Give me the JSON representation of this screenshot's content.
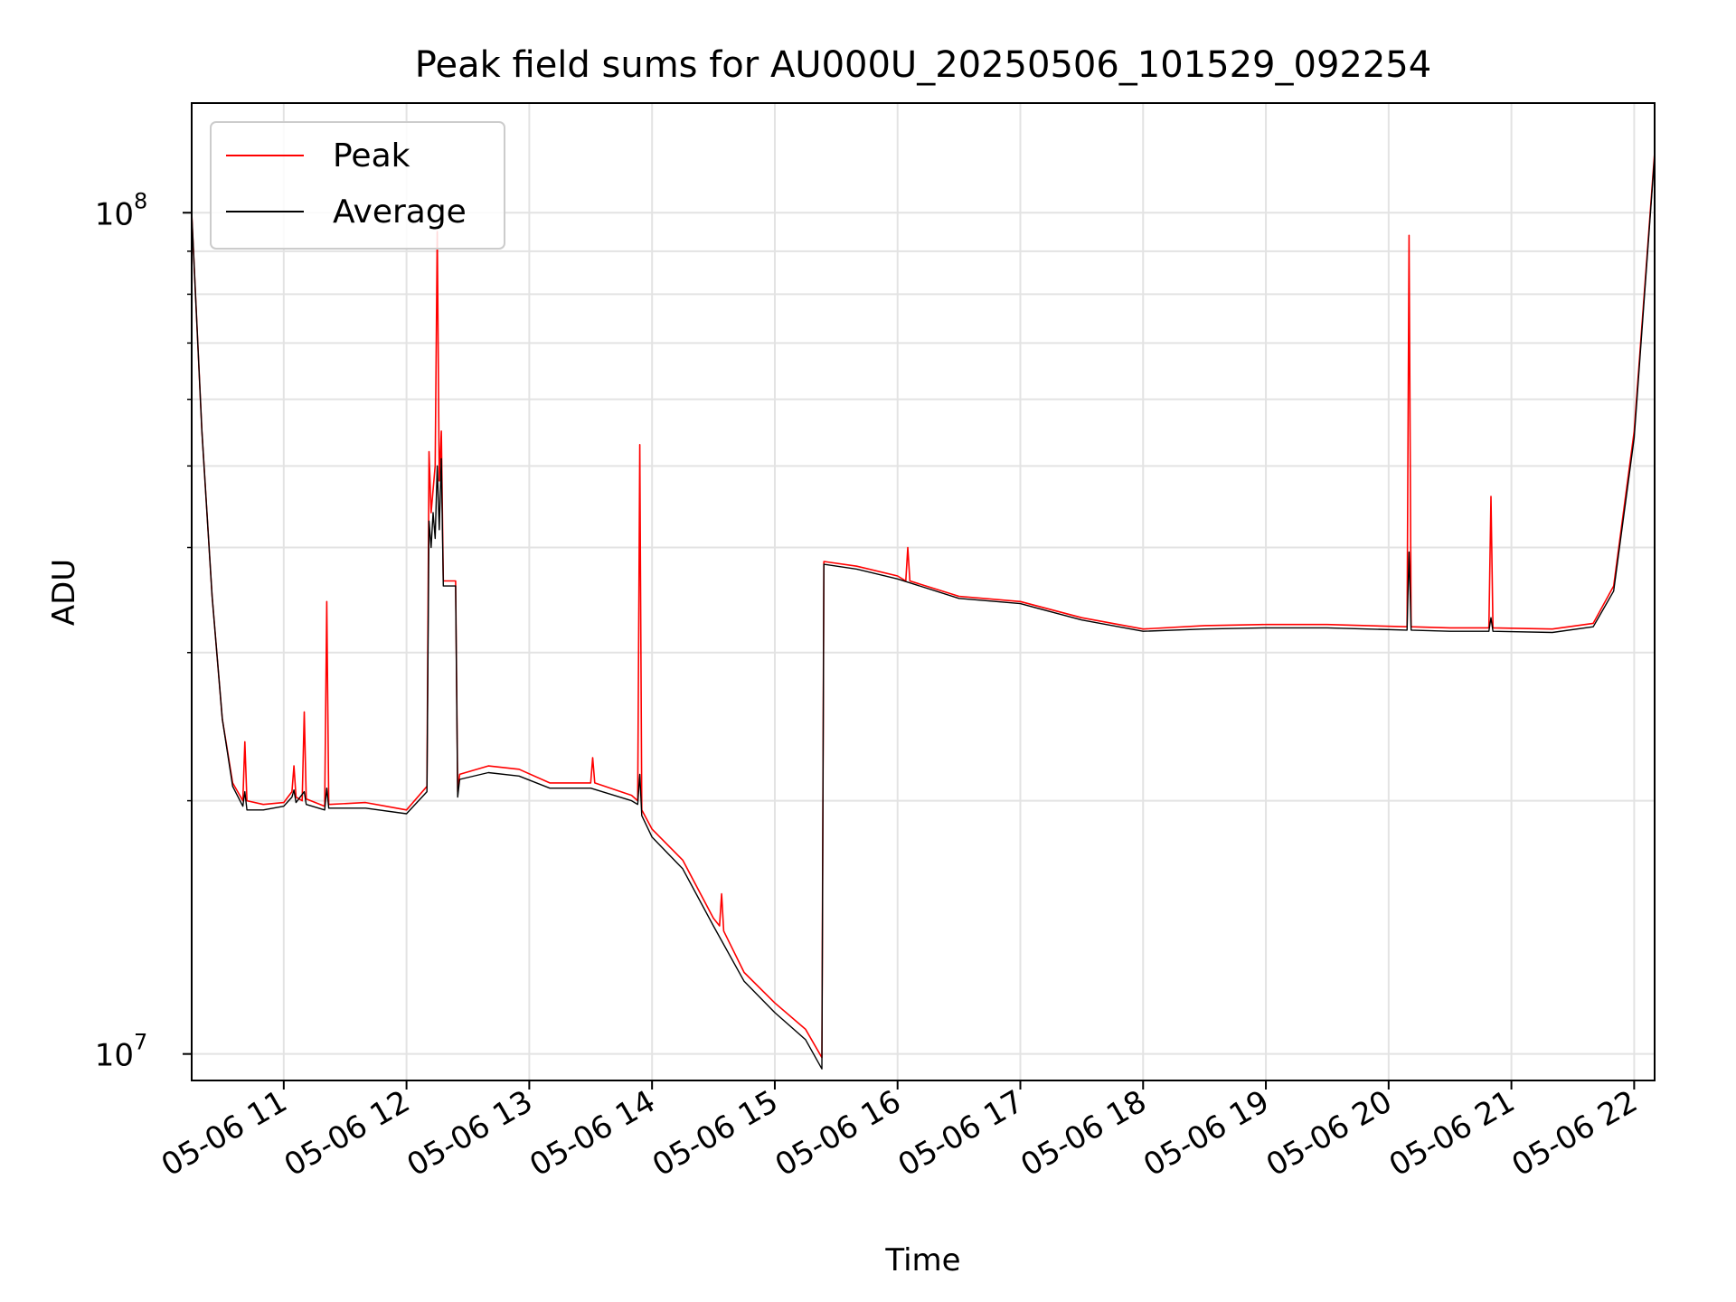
{
  "chart_data": {
    "type": "line",
    "title": "Peak field sums for AU000U_20250506_101529_092254",
    "xlabel": "Time",
    "ylabel": "ADU",
    "yscale": "log",
    "ylim": [
      9300000,
      135000000
    ],
    "xlim": [
      "2025-05-06 10:15",
      "2025-05-06 22:10"
    ],
    "grid": true,
    "legend": "top-left",
    "x_tick_labels": [
      "05-06 11",
      "05-06 12",
      "05-06 13",
      "05-06 14",
      "05-06 15",
      "05-06 16",
      "05-06 17",
      "05-06 18",
      "05-06 19",
      "05-06 20",
      "05-06 21",
      "05-06 22"
    ],
    "x_ticks": [
      "2025-05-06 11:00",
      "2025-05-06 12:00",
      "2025-05-06 13:00",
      "2025-05-06 14:00",
      "2025-05-06 15:00",
      "2025-05-06 16:00",
      "2025-05-06 17:00",
      "2025-05-06 18:00",
      "2025-05-06 19:00",
      "2025-05-06 20:00",
      "2025-05-06 21:00",
      "2025-05-06 22:00"
    ],
    "y_ticks": [
      {
        "value": 10000000,
        "base": "10",
        "exp": "7"
      },
      {
        "value": 100000000,
        "base": "10",
        "exp": "8"
      }
    ],
    "y_minor_ticks": [
      20000000,
      30000000,
      40000000,
      50000000,
      60000000,
      70000000,
      80000000,
      90000000
    ],
    "series": [
      {
        "name": "Peak",
        "color": "#ff0000",
        "points": [
          [
            "2025-05-06 10:15",
            100000000
          ],
          [
            "2025-05-06 10:20",
            55000000
          ],
          [
            "2025-05-06 10:25",
            35000000
          ],
          [
            "2025-05-06 10:30",
            25000000
          ],
          [
            "2025-05-06 10:35",
            21000000
          ],
          [
            "2025-05-06 10:40",
            20000000
          ],
          [
            "2025-05-06 10:41",
            23500000
          ],
          [
            "2025-05-06 10:42",
            20000000
          ],
          [
            "2025-05-06 10:50",
            19800000
          ],
          [
            "2025-05-06 11:00",
            19900000
          ],
          [
            "2025-05-06 11:04",
            20500000
          ],
          [
            "2025-05-06 11:05",
            22000000
          ],
          [
            "2025-05-06 11:06",
            20200000
          ],
          [
            "2025-05-06 11:09",
            20000000
          ],
          [
            "2025-05-06 11:10",
            25500000
          ],
          [
            "2025-05-06 11:11",
            20100000
          ],
          [
            "2025-05-06 11:20",
            19700000
          ],
          [
            "2025-05-06 11:21",
            34500000
          ],
          [
            "2025-05-06 11:22",
            19800000
          ],
          [
            "2025-05-06 11:40",
            19900000
          ],
          [
            "2025-05-06 12:00",
            19500000
          ],
          [
            "2025-05-06 12:10",
            20800000
          ],
          [
            "2025-05-06 12:11",
            52000000
          ],
          [
            "2025-05-06 12:12",
            44000000
          ],
          [
            "2025-05-06 12:14",
            50000000
          ],
          [
            "2025-05-06 12:15",
            95000000
          ],
          [
            "2025-05-06 12:16",
            48000000
          ],
          [
            "2025-05-06 12:17",
            55000000
          ],
          [
            "2025-05-06 12:18",
            36500000
          ],
          [
            "2025-05-06 12:24",
            36500000
          ],
          [
            "2025-05-06 12:25",
            20500000
          ],
          [
            "2025-05-06 12:26",
            21500000
          ],
          [
            "2025-05-06 12:40",
            22000000
          ],
          [
            "2025-05-06 12:55",
            21800000
          ],
          [
            "2025-05-06 13:10",
            21000000
          ],
          [
            "2025-05-06 13:30",
            21000000
          ],
          [
            "2025-05-06 13:31",
            22500000
          ],
          [
            "2025-05-06 13:32",
            21000000
          ],
          [
            "2025-05-06 13:50",
            20300000
          ],
          [
            "2025-05-06 13:53",
            20000000
          ],
          [
            "2025-05-06 13:54",
            53000000
          ],
          [
            "2025-05-06 13:55",
            19500000
          ],
          [
            "2025-05-06 14:00",
            18500000
          ],
          [
            "2025-05-06 14:15",
            17000000
          ],
          [
            "2025-05-06 14:30",
            14500000
          ],
          [
            "2025-05-06 14:33",
            14200000
          ],
          [
            "2025-05-06 14:34",
            15500000
          ],
          [
            "2025-05-06 14:35",
            14000000
          ],
          [
            "2025-05-06 14:45",
            12500000
          ],
          [
            "2025-05-06 15:00",
            11500000
          ],
          [
            "2025-05-06 15:15",
            10700000
          ],
          [
            "2025-05-06 15:23",
            9900000
          ],
          [
            "2025-05-06 15:24",
            38500000
          ],
          [
            "2025-05-06 15:40",
            38000000
          ],
          [
            "2025-05-06 16:00",
            37000000
          ],
          [
            "2025-05-06 16:04",
            36500000
          ],
          [
            "2025-05-06 16:05",
            40000000
          ],
          [
            "2025-05-06 16:06",
            36500000
          ],
          [
            "2025-05-06 16:30",
            35000000
          ],
          [
            "2025-05-06 17:00",
            34500000
          ],
          [
            "2025-05-06 17:30",
            33000000
          ],
          [
            "2025-05-06 18:00",
            32000000
          ],
          [
            "2025-05-06 18:30",
            32300000
          ],
          [
            "2025-05-06 19:00",
            32400000
          ],
          [
            "2025-05-06 19:30",
            32400000
          ],
          [
            "2025-05-06 20:09",
            32200000
          ],
          [
            "2025-05-06 20:10",
            94000000
          ],
          [
            "2025-05-06 20:11",
            32200000
          ],
          [
            "2025-05-06 20:30",
            32100000
          ],
          [
            "2025-05-06 20:49",
            32100000
          ],
          [
            "2025-05-06 20:50",
            46000000
          ],
          [
            "2025-05-06 20:51",
            32100000
          ],
          [
            "2025-05-06 21:20",
            32000000
          ],
          [
            "2025-05-06 21:40",
            32500000
          ],
          [
            "2025-05-06 21:50",
            36000000
          ],
          [
            "2025-05-06 22:00",
            55000000
          ],
          [
            "2025-05-06 22:10",
            118000000
          ]
        ]
      },
      {
        "name": "Average",
        "color": "#000000",
        "points": [
          [
            "2025-05-06 10:15",
            100000000
          ],
          [
            "2025-05-06 10:20",
            55000000
          ],
          [
            "2025-05-06 10:25",
            35000000
          ],
          [
            "2025-05-06 10:30",
            25000000
          ],
          [
            "2025-05-06 10:35",
            20800000
          ],
          [
            "2025-05-06 10:40",
            19700000
          ],
          [
            "2025-05-06 10:41",
            20500000
          ],
          [
            "2025-05-06 10:42",
            19500000
          ],
          [
            "2025-05-06 10:50",
            19500000
          ],
          [
            "2025-05-06 11:00",
            19700000
          ],
          [
            "2025-05-06 11:04",
            20200000
          ],
          [
            "2025-05-06 11:05",
            20600000
          ],
          [
            "2025-05-06 11:06",
            19900000
          ],
          [
            "2025-05-06 11:10",
            20500000
          ],
          [
            "2025-05-06 11:11",
            19800000
          ],
          [
            "2025-05-06 11:20",
            19500000
          ],
          [
            "2025-05-06 11:21",
            20700000
          ],
          [
            "2025-05-06 11:22",
            19600000
          ],
          [
            "2025-05-06 11:40",
            19600000
          ],
          [
            "2025-05-06 12:00",
            19300000
          ],
          [
            "2025-05-06 12:10",
            20500000
          ],
          [
            "2025-05-06 12:11",
            43000000
          ],
          [
            "2025-05-06 12:12",
            40000000
          ],
          [
            "2025-05-06 12:13",
            44000000
          ],
          [
            "2025-05-06 12:14",
            41000000
          ],
          [
            "2025-05-06 12:15",
            50000000
          ],
          [
            "2025-05-06 12:16",
            42000000
          ],
          [
            "2025-05-06 12:17",
            51000000
          ],
          [
            "2025-05-06 12:18",
            36000000
          ],
          [
            "2025-05-06 12:24",
            36000000
          ],
          [
            "2025-05-06 12:25",
            20200000
          ],
          [
            "2025-05-06 12:26",
            21200000
          ],
          [
            "2025-05-06 12:40",
            21600000
          ],
          [
            "2025-05-06 12:55",
            21400000
          ],
          [
            "2025-05-06 13:10",
            20700000
          ],
          [
            "2025-05-06 13:30",
            20700000
          ],
          [
            "2025-05-06 13:50",
            20000000
          ],
          [
            "2025-05-06 13:53",
            19800000
          ],
          [
            "2025-05-06 13:54",
            21500000
          ],
          [
            "2025-05-06 13:55",
            19200000
          ],
          [
            "2025-05-06 14:00",
            18100000
          ],
          [
            "2025-05-06 14:15",
            16600000
          ],
          [
            "2025-05-06 14:30",
            14200000
          ],
          [
            "2025-05-06 14:45",
            12200000
          ],
          [
            "2025-05-06 15:00",
            11200000
          ],
          [
            "2025-05-06 15:15",
            10400000
          ],
          [
            "2025-05-06 15:23",
            9600000
          ],
          [
            "2025-05-06 15:24",
            38200000
          ],
          [
            "2025-05-06 15:40",
            37700000
          ],
          [
            "2025-05-06 16:00",
            36700000
          ],
          [
            "2025-05-06 16:30",
            34800000
          ],
          [
            "2025-05-06 17:00",
            34300000
          ],
          [
            "2025-05-06 17:30",
            32800000
          ],
          [
            "2025-05-06 18:00",
            31800000
          ],
          [
            "2025-05-06 18:30",
            32000000
          ],
          [
            "2025-05-06 19:00",
            32100000
          ],
          [
            "2025-05-06 19:30",
            32100000
          ],
          [
            "2025-05-06 20:09",
            31900000
          ],
          [
            "2025-05-06 20:10",
            39500000
          ],
          [
            "2025-05-06 20:11",
            31900000
          ],
          [
            "2025-05-06 20:30",
            31800000
          ],
          [
            "2025-05-06 20:49",
            31800000
          ],
          [
            "2025-05-06 20:50",
            33000000
          ],
          [
            "2025-05-06 20:51",
            31800000
          ],
          [
            "2025-05-06 21:20",
            31700000
          ],
          [
            "2025-05-06 21:40",
            32200000
          ],
          [
            "2025-05-06 21:50",
            35500000
          ],
          [
            "2025-05-06 22:00",
            54000000
          ],
          [
            "2025-05-06 22:10",
            117000000
          ]
        ]
      }
    ]
  }
}
